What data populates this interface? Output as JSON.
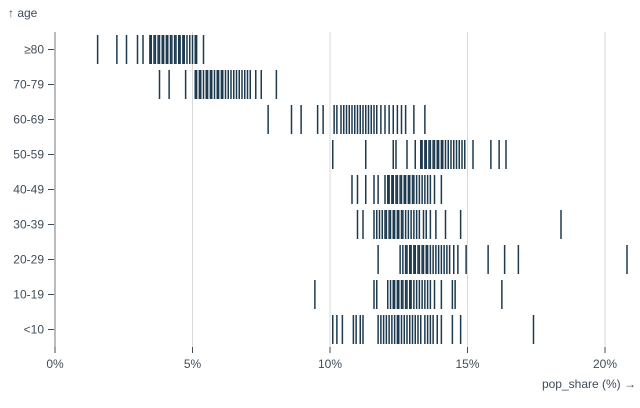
{
  "chart_data": {
    "type": "tick-strip",
    "title": "",
    "xlabel": "pop_share (%)",
    "ylabel": "age",
    "y_axis_title_display": "↑ age",
    "x_axis_title_display": "pop_share (%) →",
    "grid": true,
    "legend": false,
    "xlim": [
      0,
      21.3
    ],
    "x_tick_values": [
      0,
      5,
      10,
      15,
      20
    ],
    "x_tick_labels": [
      "0%",
      "5%",
      "10%",
      "15%",
      "20%"
    ],
    "categories": [
      "≥80",
      "70-79",
      "60-69",
      "50-59",
      "40-49",
      "30-39",
      "20-29",
      "10-19",
      "<10"
    ],
    "colors": {
      "tick": "#1e3a4f",
      "label": "#3f4c59",
      "gridline": "#d9d9d9",
      "axis": "#6e7880"
    },
    "series": [
      {
        "name": "≥80",
        "values": [
          1.55,
          2.25,
          2.6,
          3.0,
          3.2,
          3.45,
          3.5,
          3.6,
          3.65,
          3.75,
          3.8,
          3.9,
          3.95,
          4.05,
          4.1,
          4.2,
          4.25,
          4.35,
          4.4,
          4.5,
          4.55,
          4.65,
          4.7,
          4.8,
          4.9,
          5.0,
          5.1,
          5.15,
          5.4
        ]
      },
      {
        "name": "70-79",
        "values": [
          3.8,
          4.15,
          4.75,
          5.1,
          5.15,
          5.25,
          5.3,
          5.4,
          5.5,
          5.55,
          5.65,
          5.7,
          5.8,
          5.9,
          5.95,
          6.05,
          6.1,
          6.2,
          6.3,
          6.4,
          6.5,
          6.6,
          6.7,
          6.8,
          6.9,
          7.0,
          7.1,
          7.3,
          7.5,
          8.05
        ]
      },
      {
        "name": "60-69",
        "values": [
          7.75,
          8.6,
          8.95,
          9.55,
          9.75,
          10.15,
          10.25,
          10.4,
          10.5,
          10.6,
          10.7,
          10.8,
          10.9,
          11.0,
          11.1,
          11.2,
          11.3,
          11.4,
          11.5,
          11.6,
          11.7,
          11.85,
          12.0,
          12.15,
          12.3,
          12.45,
          12.6,
          12.75,
          13.05,
          13.45
        ]
      },
      {
        "name": "50-59",
        "values": [
          10.1,
          11.3,
          12.3,
          12.4,
          12.8,
          13.1,
          13.3,
          13.35,
          13.45,
          13.5,
          13.6,
          13.65,
          13.75,
          13.8,
          13.9,
          13.95,
          14.05,
          14.1,
          14.2,
          14.3,
          14.4,
          14.5,
          14.6,
          14.7,
          14.8,
          14.9,
          15.2,
          15.85,
          16.15,
          16.4
        ]
      },
      {
        "name": "40-49",
        "values": [
          10.8,
          11.0,
          11.3,
          11.6,
          11.75,
          12.0,
          12.1,
          12.15,
          12.25,
          12.3,
          12.4,
          12.45,
          12.55,
          12.6,
          12.7,
          12.75,
          12.85,
          12.9,
          13.0,
          13.05,
          13.15,
          13.25,
          13.35,
          13.45,
          13.55,
          13.65,
          13.8,
          14.05
        ]
      },
      {
        "name": "30-39",
        "values": [
          11.0,
          11.2,
          11.6,
          11.7,
          11.8,
          11.9,
          12.0,
          12.05,
          12.15,
          12.2,
          12.3,
          12.35,
          12.45,
          12.5,
          12.6,
          12.65,
          12.75,
          12.85,
          12.95,
          13.05,
          13.15,
          13.25,
          13.4,
          13.5,
          13.65,
          13.85,
          14.2,
          14.75,
          18.4
        ]
      },
      {
        "name": "20-29",
        "values": [
          11.75,
          12.55,
          12.65,
          12.75,
          12.8,
          12.9,
          12.95,
          13.05,
          13.1,
          13.2,
          13.25,
          13.35,
          13.4,
          13.5,
          13.55,
          13.65,
          13.75,
          13.85,
          13.95,
          14.05,
          14.15,
          14.25,
          14.35,
          14.5,
          14.65,
          14.95,
          15.75,
          16.35,
          16.85,
          20.8
        ]
      },
      {
        "name": "10-19",
        "values": [
          9.45,
          11.6,
          11.7,
          12.1,
          12.2,
          12.3,
          12.35,
          12.45,
          12.5,
          12.6,
          12.65,
          12.75,
          12.8,
          12.9,
          12.95,
          13.05,
          13.15,
          13.25,
          13.35,
          13.45,
          13.55,
          13.65,
          13.8,
          14.05,
          14.45,
          14.55,
          16.25
        ]
      },
      {
        "name": "<10",
        "values": [
          10.1,
          10.25,
          10.45,
          10.85,
          10.95,
          11.1,
          11.2,
          11.75,
          11.85,
          11.95,
          12.05,
          12.15,
          12.25,
          12.35,
          12.45,
          12.5,
          12.6,
          12.7,
          12.8,
          12.9,
          13.0,
          13.1,
          13.2,
          13.3,
          13.45,
          13.55,
          13.65,
          13.75,
          13.9,
          14.05,
          14.45,
          14.75,
          17.4
        ]
      }
    ]
  }
}
